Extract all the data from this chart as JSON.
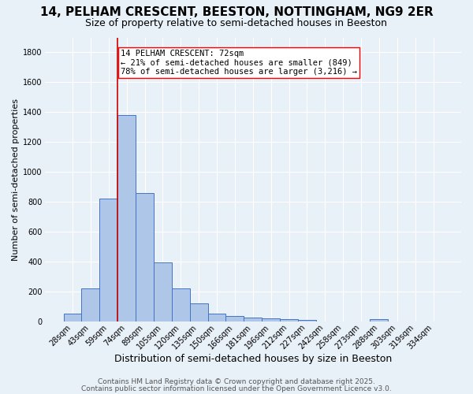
{
  "title": "14, PELHAM CRESCENT, BEESTON, NOTTINGHAM, NG9 2ER",
  "subtitle": "Size of property relative to semi-detached houses in Beeston",
  "xlabel": "Distribution of semi-detached houses by size in Beeston",
  "ylabel": "Number of semi-detached properties",
  "categories": [
    "28sqm",
    "43sqm",
    "59sqm",
    "74sqm",
    "89sqm",
    "105sqm",
    "120sqm",
    "135sqm",
    "150sqm",
    "166sqm",
    "181sqm",
    "196sqm",
    "212sqm",
    "227sqm",
    "242sqm",
    "258sqm",
    "273sqm",
    "288sqm",
    "303sqm",
    "319sqm",
    "334sqm"
  ],
  "values": [
    50,
    220,
    820,
    1380,
    860,
    395,
    220,
    120,
    50,
    35,
    25,
    20,
    15,
    10,
    0,
    0,
    0,
    12,
    0,
    0,
    0
  ],
  "bar_color": "#aec6e8",
  "bar_edge_color": "#4472c4",
  "background_color": "#e8f0f8",
  "grid_color": "#ffffff",
  "annotation_line1": "14 PELHAM CRESCENT: 72sqm",
  "annotation_line2": "← 21% of semi-detached houses are smaller (849)",
  "annotation_line3": "78% of semi-detached houses are larger (3,216) →",
  "vline_index": 3,
  "vline_color": "#cc0000",
  "ylim": [
    0,
    1900
  ],
  "yticks": [
    0,
    200,
    400,
    600,
    800,
    1000,
    1200,
    1400,
    1600,
    1800
  ],
  "footer1": "Contains HM Land Registry data © Crown copyright and database right 2025.",
  "footer2": "Contains public sector information licensed under the Open Government Licence v3.0.",
  "title_fontsize": 11,
  "subtitle_fontsize": 9,
  "xlabel_fontsize": 9,
  "ylabel_fontsize": 8,
  "tick_fontsize": 7,
  "annotation_fontsize": 7.5,
  "footer_fontsize": 6.5
}
